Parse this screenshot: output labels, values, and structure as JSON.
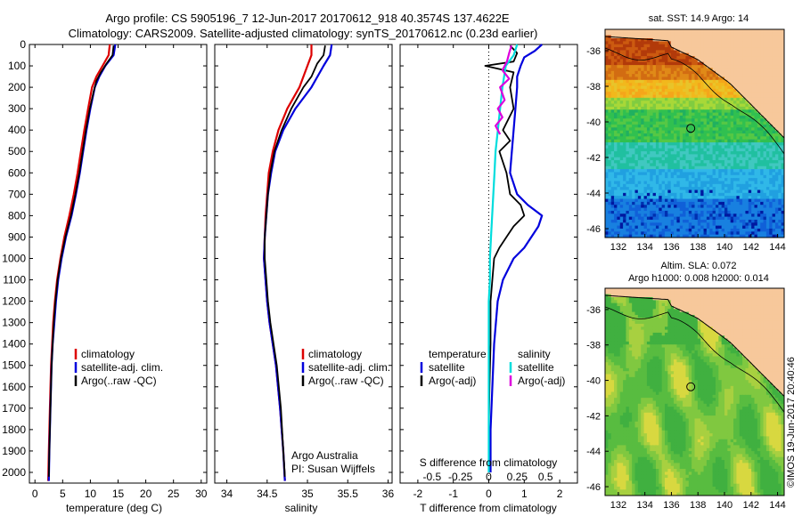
{
  "header": {
    "line1": "Argo profile: CS 5905196_7 12-Jun-2017 20170612_918 40.3574S 137.4622E",
    "line2": "Climatology: CARS2009. Satellite-adjusted climatology: synTS_20170612.nc (0.23d earlier)"
  },
  "credits": {
    "argo_line1": "Argo Australia",
    "argo_line2": "PI: Susan Wijffels",
    "imos": "©IMOS 19-Jun-2017 20:40:46"
  },
  "colors": {
    "climatology": "#dd0000",
    "satellite": "#0000dd",
    "argo": "#000000",
    "sal_satellite": "#00dddd",
    "sal_argo": "#dd00dd",
    "land": "#f7c89b"
  },
  "chart_data": [
    {
      "type": "line",
      "id": "temperature",
      "xlabel": "temperature (deg C)",
      "xlim": [
        -1,
        31
      ],
      "ylim": [
        2050,
        0
      ],
      "xticks": [
        "0",
        "5",
        "10",
        "15",
        "20",
        "25",
        "30"
      ],
      "xtick_values": [
        0,
        5,
        10,
        15,
        20,
        25,
        30
      ],
      "yticks": [
        "0",
        "100",
        "200",
        "300",
        "400",
        "500",
        "600",
        "700",
        "800",
        "900",
        "1000",
        "1100",
        "1200",
        "1300",
        "1400",
        "1500",
        "1600",
        "1700",
        "1800",
        "1900",
        "2000"
      ],
      "ytick_values": [
        0,
        100,
        200,
        300,
        400,
        500,
        600,
        700,
        800,
        900,
        1000,
        1100,
        1200,
        1300,
        1400,
        1500,
        1600,
        1700,
        1800,
        1900,
        2000
      ],
      "legend": [
        "climatology",
        "satellite-adj. clim.",
        "Argo(..raw -QC)"
      ],
      "series": [
        {
          "name": "climatology",
          "color_key": "climatology",
          "depth": [
            0,
            50,
            100,
            150,
            200,
            300,
            400,
            500,
            600,
            700,
            800,
            900,
            1000,
            1100,
            1200,
            1300,
            1400,
            1500,
            1700,
            1900,
            2040
          ],
          "values": [
            13.5,
            13.3,
            12.2,
            11.1,
            10.3,
            9.6,
            8.9,
            8.3,
            7.7,
            7.0,
            6.2,
            5.3,
            4.6,
            4.0,
            3.6,
            3.3,
            3.1,
            2.9,
            2.7,
            2.5,
            2.4
          ]
        },
        {
          "name": "satellite-adj. clim.",
          "color_key": "satellite",
          "depth": [
            0,
            50,
            100,
            150,
            200,
            300,
            400,
            500,
            600,
            700,
            800,
            900,
            1000,
            1100,
            1200,
            1300,
            1400,
            1500,
            1700,
            1900,
            2040
          ],
          "values": [
            14.5,
            14.2,
            12.7,
            11.6,
            10.8,
            10.0,
            9.3,
            8.7,
            8.1,
            7.4,
            6.6,
            5.6,
            4.8,
            4.2,
            3.8,
            3.5,
            3.2,
            3.0,
            2.8,
            2.6,
            2.5
          ]
        },
        {
          "name": "Argo(..raw -QC)",
          "color_key": "argo",
          "depth": [
            5,
            50,
            90,
            130,
            170,
            220,
            300,
            400,
            500,
            600,
            700,
            800,
            900,
            1000,
            1100,
            1200,
            1300,
            1400,
            1500,
            1700,
            1900,
            2020
          ],
          "values": [
            14.2,
            14.0,
            12.9,
            11.9,
            11.1,
            10.6,
            9.9,
            9.2,
            8.6,
            8.0,
            7.3,
            6.5,
            5.5,
            4.7,
            4.1,
            3.7,
            3.4,
            3.2,
            3.0,
            2.8,
            2.6,
            2.5
          ]
        }
      ]
    },
    {
      "type": "line",
      "id": "salinity",
      "xlabel": "salinity",
      "xlim": [
        33.85,
        36.05
      ],
      "ylim": [
        2050,
        0
      ],
      "xticks": [
        "34",
        "34.5",
        "35",
        "35.5",
        "36"
      ],
      "xtick_values": [
        34,
        34.5,
        35,
        35.5,
        36
      ],
      "legend": [
        "climatology",
        "satellite-adj. clim.",
        "Argo(..raw -QC)"
      ],
      "series": [
        {
          "name": "climatology",
          "color_key": "climatology",
          "depth": [
            0,
            50,
            100,
            200,
            300,
            400,
            500,
            600,
            700,
            800,
            900,
            1000,
            1100,
            1200,
            1300,
            1400,
            1500,
            1700,
            1900,
            2040
          ],
          "values": [
            35.05,
            35.05,
            35.0,
            34.9,
            34.75,
            34.64,
            34.57,
            34.52,
            34.5,
            34.48,
            34.47,
            34.46,
            34.48,
            34.5,
            34.53,
            34.57,
            34.61,
            34.66,
            34.7,
            34.72
          ]
        },
        {
          "name": "satellite-adj. clim.",
          "color_key": "satellite",
          "depth": [
            0,
            50,
            100,
            200,
            300,
            400,
            500,
            600,
            700,
            800,
            900,
            1000,
            1100,
            1200,
            1300,
            1400,
            1500,
            1700,
            1900,
            2040
          ],
          "values": [
            35.3,
            35.28,
            35.2,
            35.05,
            34.85,
            34.7,
            34.6,
            34.55,
            34.51,
            34.49,
            34.47,
            34.46,
            34.48,
            34.5,
            34.53,
            34.57,
            34.61,
            34.66,
            34.7,
            34.72
          ]
        },
        {
          "name": "Argo(..raw -QC)",
          "color_key": "argo",
          "depth": [
            5,
            50,
            90,
            150,
            200,
            300,
            400,
            500,
            600,
            700,
            800,
            900,
            1000,
            1100,
            1200,
            1300,
            1400,
            1500,
            1700,
            1900,
            2020
          ],
          "values": [
            35.22,
            35.2,
            35.12,
            35.05,
            34.95,
            34.8,
            34.68,
            34.59,
            34.54,
            34.51,
            34.49,
            34.47,
            34.47,
            34.49,
            34.51,
            34.54,
            34.58,
            34.62,
            34.67,
            34.7,
            34.72
          ]
        }
      ]
    },
    {
      "type": "line",
      "id": "differences",
      "xlabel": "T difference from climatology",
      "xlabel_top": "S difference from climatology",
      "xlim": [
        -2.5,
        2.5
      ],
      "ylim": [
        2050,
        0
      ],
      "xticks": [
        "-2",
        "-1",
        "0",
        "1",
        "2"
      ],
      "xtick_values": [
        -2,
        -1,
        0,
        1,
        2
      ],
      "sticks": [
        "-0.5",
        "-0.25",
        "0",
        "0.25",
        "0.5"
      ],
      "stick_values": [
        -0.5,
        -0.25,
        0,
        0.25,
        0.5
      ],
      "legend_temperature_title": "temperature",
      "legend_salinity_title": "salinity",
      "legend_temperature": [
        "satellite",
        "Argo(-adj)"
      ],
      "legend_salinity": [
        "satellite",
        "Argo(-adj)"
      ],
      "series": [
        {
          "name": "T satellite",
          "color_key": "satellite",
          "depth": [
            0,
            30,
            60,
            100,
            150,
            200,
            300,
            400,
            500,
            600,
            700,
            750,
            800,
            850,
            900,
            950,
            1000,
            1100,
            1200,
            1400,
            1600,
            1800,
            2000
          ],
          "values": [
            1.5,
            1.3,
            1.0,
            0.9,
            0.8,
            0.8,
            0.75,
            0.7,
            0.65,
            0.6,
            0.8,
            1.1,
            1.5,
            1.4,
            1.2,
            1.0,
            0.7,
            0.4,
            0.25,
            0.15,
            0.1,
            0.05,
            0.05
          ]
        },
        {
          "name": "T Argo(-adj)",
          "color_key": "argo",
          "depth": [
            5,
            40,
            80,
            100,
            130,
            200,
            300,
            400,
            450,
            500,
            600,
            700,
            750,
            800,
            850,
            900,
            950,
            1000,
            1100,
            1200,
            1400,
            1600,
            1800,
            2000
          ],
          "values": [
            0.6,
            0.8,
            0.7,
            -0.1,
            0.7,
            0.6,
            0.7,
            0.4,
            0.6,
            0.3,
            0.5,
            0.6,
            0.9,
            1.0,
            0.7,
            0.5,
            0.3,
            0.15,
            0.1,
            0.05,
            0.05,
            0.02,
            0.0,
            0.0
          ]
        },
        {
          "name": "S satellite",
          "color_key": "sal_satellite",
          "depth": [
            0,
            50,
            100,
            200,
            300,
            400,
            500,
            600,
            700,
            800,
            900,
            1000,
            1100,
            1200,
            1400,
            1600,
            1800,
            2000
          ],
          "values": [
            0.25,
            0.22,
            0.15,
            0.12,
            0.1,
            0.08,
            0.06,
            0.05,
            0.04,
            0.03,
            0.02,
            0.01,
            0.01,
            0.0,
            0.0,
            0.0,
            0.0,
            0.0
          ]
        },
        {
          "name": "S Argo(-adj)",
          "color_key": "sal_argo",
          "depth": [
            5,
            40,
            80,
            120,
            160,
            200,
            260,
            300,
            340,
            380,
            420
          ],
          "values": [
            0.2,
            0.18,
            0.16,
            0.12,
            0.18,
            0.1,
            0.14,
            0.08,
            0.12,
            0.06,
            0.1
          ]
        }
      ]
    },
    {
      "type": "heatmap",
      "id": "sst_map",
      "title": "sat. SST: 14.9 Argo: 14",
      "xlim": [
        131,
        144.5
      ],
      "ylim": [
        -46.5,
        -34.8
      ],
      "xticks": [
        "132",
        "134",
        "136",
        "138",
        "140",
        "142",
        "144"
      ],
      "xtick_values": [
        132,
        134,
        136,
        138,
        140,
        142,
        144
      ],
      "yticks": [
        "-36",
        "-38",
        "-40",
        "-42",
        "-44",
        "-46"
      ],
      "ytick_values": [
        -36,
        -38,
        -40,
        -42,
        -44,
        -46
      ],
      "marker": {
        "lon": 137.46,
        "lat": -40.36
      }
    },
    {
      "type": "heatmap",
      "id": "sla_map",
      "title_line1": "Altim. SLA: 0.072",
      "title_line2": "Argo h1000: 0.008 h2000: 0.014",
      "xlim": [
        131,
        144.5
      ],
      "ylim": [
        -46.5,
        -34.8
      ],
      "xticks": [
        "132",
        "134",
        "136",
        "138",
        "140",
        "142",
        "144"
      ],
      "xtick_values": [
        132,
        134,
        136,
        138,
        140,
        142,
        144
      ],
      "yticks": [
        "-36",
        "-38",
        "-40",
        "-42",
        "-44",
        "-46"
      ],
      "ytick_values": [
        -36,
        -38,
        -40,
        -42,
        -44,
        -46
      ],
      "marker": {
        "lon": 137.46,
        "lat": -40.36
      }
    }
  ]
}
